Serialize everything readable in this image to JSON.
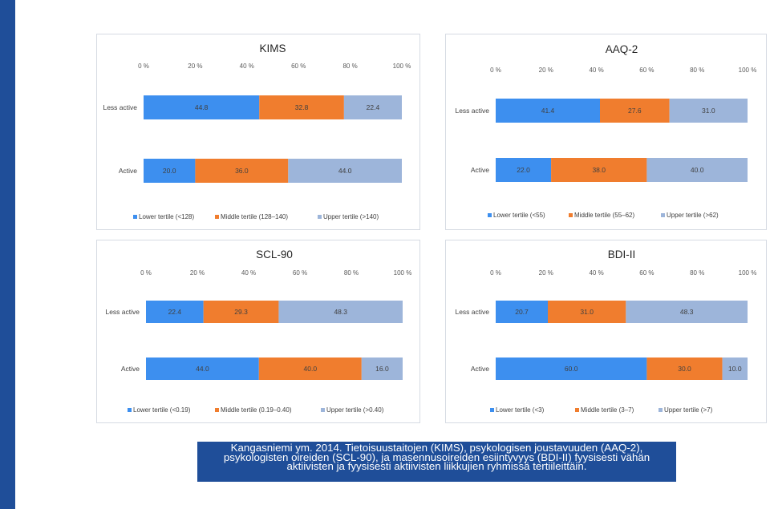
{
  "colors": {
    "lower": "#3d8fef",
    "middle": "#f07d2e",
    "upper": "#9db5da",
    "caption_bg": "#1f4e99",
    "side_bar": "#1f4e99"
  },
  "chart_data": [
    {
      "type": "bar",
      "orientation": "horizontal",
      "stacked": true,
      "title": "KIMS",
      "ticks": [
        "0 %",
        "20 %",
        "40 %",
        "60 %",
        "80 %",
        "100 %"
      ],
      "xlim": [
        0,
        100
      ],
      "categories": [
        "Less active",
        "Active"
      ],
      "series": [
        {
          "name": "Lower tertile (<128)",
          "values": [
            44.8,
            20.0
          ],
          "labels": [
            "44.8",
            "20.0"
          ]
        },
        {
          "name": "Middle tertile (128–140)",
          "values": [
            32.8,
            36.0
          ],
          "labels": [
            "32.8",
            "36.0"
          ]
        },
        {
          "name": "Upper tertile (>140)",
          "values": [
            22.4,
            44.0
          ],
          "labels": [
            "22.4",
            "44.0"
          ]
        }
      ],
      "legend": "bottom",
      "grid": false
    },
    {
      "type": "bar",
      "orientation": "horizontal",
      "stacked": true,
      "title": "AAQ-2",
      "ticks": [
        "0 %",
        "20 %",
        "40 %",
        "60 %",
        "80 %",
        "100 %"
      ],
      "xlim": [
        0,
        100
      ],
      "categories": [
        "Less active",
        "Active"
      ],
      "series": [
        {
          "name": "Lower tertile (<55)",
          "values": [
            41.4,
            22.0
          ],
          "labels": [
            "41.4",
            "22.0"
          ]
        },
        {
          "name": "Middle tertile (55–62)",
          "values": [
            27.6,
            38.0
          ],
          "labels": [
            "27.6",
            "38.0"
          ]
        },
        {
          "name": "Upper tertile (>62)",
          "values": [
            31.0,
            40.0
          ],
          "labels": [
            "31.0",
            "40.0"
          ]
        }
      ],
      "legend": "bottom",
      "grid": false
    },
    {
      "type": "bar",
      "orientation": "horizontal",
      "stacked": true,
      "title": "SCL-90",
      "ticks": [
        "0 %",
        "20 %",
        "40 %",
        "60 %",
        "80 %",
        "100 %"
      ],
      "xlim": [
        0,
        100
      ],
      "categories": [
        "Less active",
        "Active"
      ],
      "series": [
        {
          "name": "Lower tertile (<0.19)",
          "values": [
            22.4,
            44.0
          ],
          "labels": [
            "22.4",
            "44.0"
          ]
        },
        {
          "name": "Middle tertile (0.19–0.40)",
          "values": [
            29.3,
            40.0
          ],
          "labels": [
            "29.3",
            "40.0"
          ]
        },
        {
          "name": "Upper tertile (>0.40)",
          "values": [
            48.3,
            16.0
          ],
          "labels": [
            "48.3",
            "16.0"
          ]
        }
      ],
      "legend": "bottom",
      "grid": false
    },
    {
      "type": "bar",
      "orientation": "horizontal",
      "stacked": true,
      "title": "BDI-II",
      "ticks": [
        "0 %",
        "20 %",
        "40 %",
        "60 %",
        "80 %",
        "100 %"
      ],
      "xlim": [
        0,
        100
      ],
      "categories": [
        "Less active",
        "Active"
      ],
      "series": [
        {
          "name": "Lower tertile (<3)",
          "values": [
            20.7,
            60.0
          ],
          "labels": [
            "20.7",
            "60.0"
          ]
        },
        {
          "name": "Middle tertile (3–7)",
          "values": [
            31.0,
            30.0
          ],
          "labels": [
            "31.0",
            "30.0"
          ]
        },
        {
          "name": "Upper tertile (>7)",
          "values": [
            48.3,
            10.0
          ],
          "labels": [
            "48.3",
            "10.0"
          ]
        }
      ],
      "legend": "bottom",
      "grid": false
    }
  ],
  "caption": {
    "lines": [
      "Kangasniemi ym. 2014. Tietoisuustaitojen (KIMS), psykologisen joustavuuden (AAQ-2),",
      "psykologisten oireiden (SCL-90), ja masennusoireiden esiintyvyys (BDI-II) fyysisesti vähän",
      "aktiivisten ja fyysisesti aktiivisten liikkujien ryhmissä tertiileittäin."
    ]
  }
}
